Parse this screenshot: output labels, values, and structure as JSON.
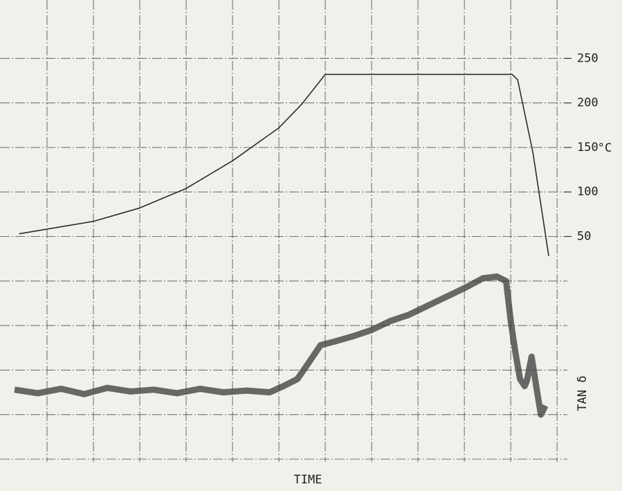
{
  "chart_data": {
    "type": "line",
    "x_label": "TIME",
    "y_label": "°C",
    "y2_label": "TAN δ",
    "xlim": [
      0,
      12.4
    ],
    "xticks": [
      1,
      2,
      3,
      4,
      5,
      6,
      7,
      8,
      9,
      10,
      11,
      12
    ],
    "ylim": [
      -200,
      300
    ],
    "yticks": [
      50,
      100,
      150,
      200,
      250
    ],
    "y_grid": [
      -200,
      -150,
      -100,
      -50,
      0,
      50,
      100,
      150,
      200,
      250
    ],
    "grid": true,
    "series": [
      {
        "color": "#2a2a2a",
        "x": [
          0.4,
          2,
          3,
          4,
          5,
          6,
          6.5,
          7,
          11.03,
          11.15,
          11.48,
          11.82
        ],
        "values": [
          53,
          67,
          82,
          104,
          135,
          172,
          199,
          232,
          232,
          226,
          144,
          28
        ]
      },
      {
        "color": "#3a3a3a",
        "x": [
          0.3,
          0.8,
          1.3,
          1.8,
          2.3,
          2.8,
          3.3,
          3.8,
          4.3,
          4.8,
          5.3,
          5.8,
          6.1,
          6.4,
          6.6,
          6.9,
          7.2,
          7.6,
          8.0,
          8.4,
          8.8,
          9.2,
          9.6,
          10.0,
          10.4,
          10.7,
          10.9,
          11.0,
          11.1,
          11.2,
          11.3,
          11.35,
          11.45,
          11.55,
          11.65,
          11.75
        ],
        "values": [
          -122,
          -126,
          -121,
          -127,
          -120,
          -124,
          -122,
          -126,
          -121,
          -125,
          -123,
          -125,
          -118,
          -110,
          -95,
          -72,
          -68,
          -62,
          -55,
          -45,
          -38,
          -28,
          -18,
          -8,
          3,
          5,
          0,
          -45,
          -80,
          -110,
          -118,
          -112,
          -85,
          -118,
          -150,
          -140
        ]
      }
    ]
  }
}
